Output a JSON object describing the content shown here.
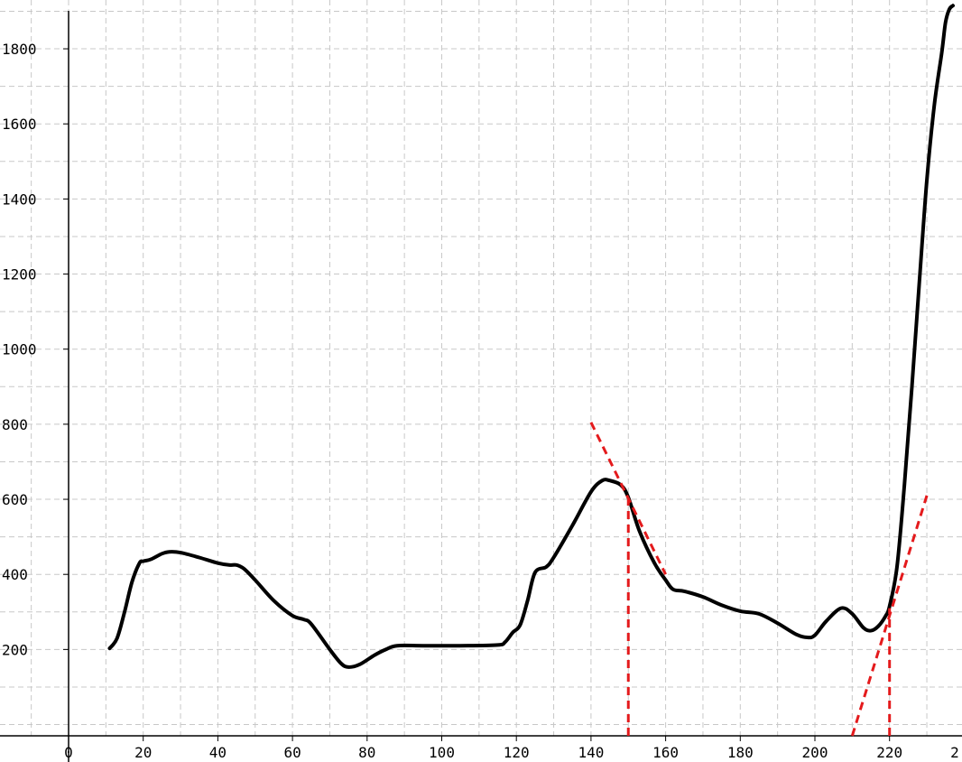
{
  "chart_data": {
    "type": "line",
    "title": "",
    "xlabel": "",
    "ylabel": "",
    "xlim": [
      -15,
      240
    ],
    "ylim": [
      -30,
      1930
    ],
    "grid": true,
    "x_ticks": [
      0,
      20,
      40,
      60,
      80,
      100,
      120,
      140,
      160,
      180,
      200,
      220
    ],
    "x_tick_labels": [
      "0",
      "20",
      "40",
      "60",
      "80",
      "100",
      "120",
      "140",
      "160",
      "180",
      "200",
      "220"
    ],
    "x_edge_labels": [
      "2"
    ],
    "y_ticks": [
      200,
      400,
      600,
      800,
      1000,
      1200,
      1400,
      1600,
      1800
    ],
    "y_tick_labels": [
      "200",
      "400",
      "600",
      "800",
      "1000",
      "1200",
      "1400",
      "1600",
      "1800"
    ],
    "x_minor_step": 10,
    "y_minor_step": 100,
    "series": [
      {
        "style": "solid",
        "color": "#000000",
        "x": [
          11,
          13,
          15,
          17,
          19,
          20,
          22,
          25,
          27,
          30,
          35,
          40,
          43,
          45,
          47,
          50,
          55,
          60,
          63,
          65,
          70,
          73,
          75,
          78,
          82,
          85,
          88,
          95,
          105,
          115,
          117,
          119,
          121,
          123,
          125,
          128,
          130,
          135,
          140,
          143,
          145,
          148,
          150,
          153,
          157,
          160,
          162,
          165,
          170,
          175,
          180,
          185,
          190,
          195,
          198,
          200,
          203,
          207,
          210,
          213,
          215,
          217,
          219,
          220,
          222,
          224,
          226,
          228,
          230,
          232,
          234,
          235,
          236,
          237
        ],
        "y": [
          203,
          230,
          300,
          380,
          430,
          435,
          440,
          455,
          460,
          458,
          445,
          430,
          425,
          425,
          415,
          385,
          330,
          290,
          280,
          268,
          200,
          163,
          153,
          160,
          185,
          200,
          210,
          210,
          210,
          212,
          220,
          245,
          265,
          330,
          405,
          420,
          445,
          530,
          620,
          650,
          650,
          638,
          605,
          515,
          430,
          385,
          360,
          355,
          340,
          318,
          302,
          295,
          270,
          240,
          232,
          238,
          275,
          310,
          295,
          258,
          250,
          262,
          290,
          315,
          420,
          640,
          900,
          1180,
          1450,
          1650,
          1790,
          1870,
          1905,
          1915
        ]
      },
      {
        "style": "dashed",
        "color": "#e41a1c",
        "x": [
          140,
          160
        ],
        "y": [
          805,
          400
        ]
      },
      {
        "style": "dashed",
        "color": "#e41a1c",
        "x": [
          150,
          150
        ],
        "y": [
          -30,
          600
        ]
      },
      {
        "style": "dashed",
        "color": "#e41a1c",
        "x": [
          210,
          230
        ],
        "y": [
          -30,
          610
        ]
      },
      {
        "style": "dashed",
        "color": "#e41a1c",
        "x": [
          220,
          220
        ],
        "y": [
          -30,
          310
        ]
      }
    ]
  }
}
